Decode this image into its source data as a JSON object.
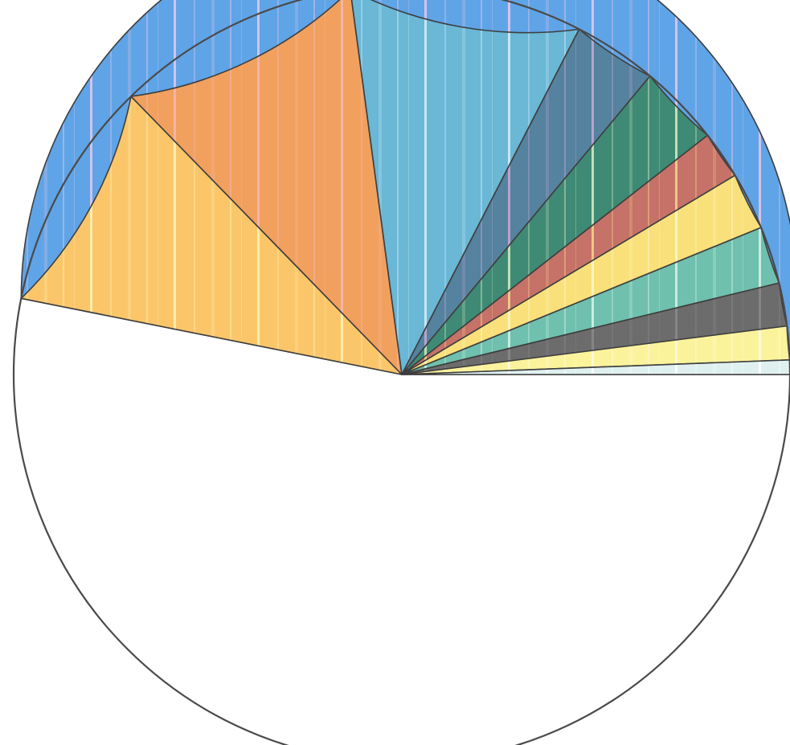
{
  "chart_data": {
    "type": "pie",
    "title": "",
    "start_angle_deg": 0,
    "direction": "counterclockwise",
    "legend": "none",
    "slices": [
      {
        "value": 53.3,
        "color": "#5fa4e6",
        "stripe": "#e6c9ec"
      },
      {
        "value": 9.6,
        "color": "#fbc66a",
        "stripe": "#fff3b8"
      },
      {
        "value": 10.2,
        "color": "#f2a05e",
        "stripe": "#f3b8b6"
      },
      {
        "value": 9.7,
        "color": "#6ab7d6",
        "stripe": "#d9f0fa"
      },
      {
        "value": 3.5,
        "color": "#55829e",
        "stripe": "#c9a9d6"
      },
      {
        "value": 3.4,
        "color": "#3f8a74",
        "stripe": "#d8ecc4"
      },
      {
        "value": 2.0,
        "color": "#c67268",
        "stripe": "#f4d68c"
      },
      {
        "value": 2.4,
        "color": "#f9e07a",
        "stripe": "#fff8c8"
      },
      {
        "value": 2.4,
        "color": "#6fc0ae",
        "stripe": "#d7f3ea"
      },
      {
        "value": 1.8,
        "color": "#6c6c6c",
        "stripe": "#8a8a8a"
      },
      {
        "value": 1.4,
        "color": "#fbf39c",
        "stripe": "#fffbe0"
      },
      {
        "value": 0.6,
        "color": "#dff0ef",
        "stripe": "#ffffff"
      }
    ]
  }
}
